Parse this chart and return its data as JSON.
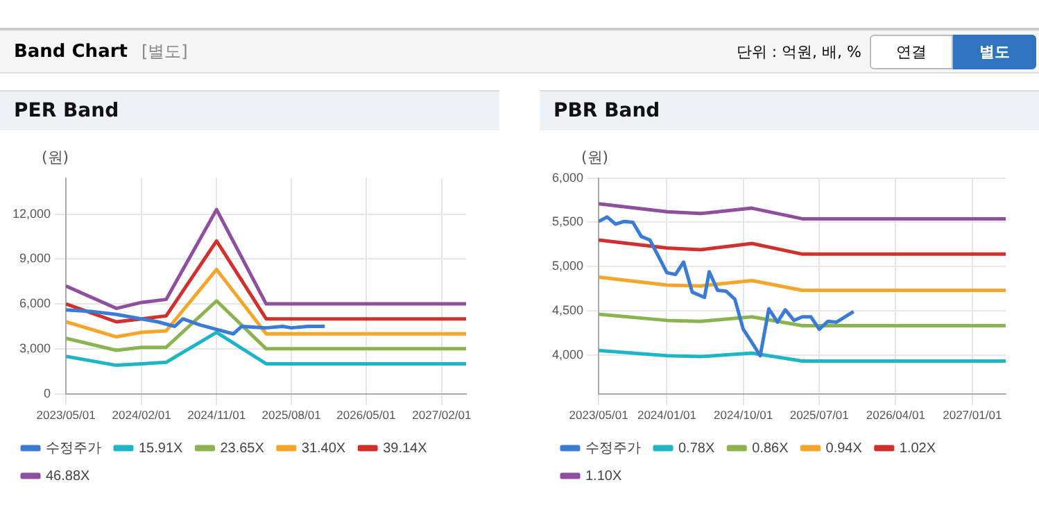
{
  "chart_data": [
    {
      "type": "other",
      "title": "Band Chart",
      "subtitle": "[별도]",
      "annotations": [
        "단위 : 억원, 배, %",
        "연결",
        "별도"
      ]
    },
    {
      "type": "line",
      "title": "PER Band",
      "ylabel": "(원)",
      "xlim": [
        "2023-05-01",
        "2027-05-01"
      ],
      "xticks": [
        {
          "value": "2023-05-01",
          "label": "2023/05/01"
        },
        {
          "value": "2024-02-01",
          "label": "2024/02/01"
        },
        {
          "value": "2024-11-01",
          "label": "2024/11/01"
        },
        {
          "value": "2025-08-01",
          "label": "2025/08/01"
        },
        {
          "value": "2026-05-01",
          "label": "2026/05/01"
        },
        {
          "value": "2027-02-01",
          "label": "2027/02/01"
        }
      ],
      "ylim": [
        0,
        14400
      ],
      "yticks": [
        0,
        {
          "value": 3000,
          "label": "3,000"
        },
        {
          "value": 6000,
          "label": "6,000"
        },
        {
          "value": 9000,
          "label": "9,000"
        },
        {
          "value": 12000,
          "label": "12,000"
        }
      ],
      "grid": true,
      "legend": "bottom",
      "marker": "none",
      "line_style": "solid",
      "series": [
        {
          "name": "수정주가",
          "color": "#3a7bd5",
          "x": [
            "2023-05-01",
            "2023-08-01",
            "2023-11-01",
            "2024-02-01",
            "2024-04-01",
            "2024-06-01",
            "2024-07-01",
            "2024-09-01",
            "2024-11-01",
            "2025-01-01",
            "2025-02-01",
            "2025-05-01",
            "2025-07-01",
            "2025-08-01",
            "2025-10-01",
            "2025-12-01"
          ],
          "values": [
            5600,
            5500,
            5300,
            5000,
            4800,
            4500,
            5000,
            4600,
            4300,
            4000,
            4500,
            4400,
            4500,
            4400,
            4500,
            4500
          ]
        },
        {
          "name": "15.91X",
          "color": "#1fb5c4",
          "x": [
            "2023-05-01",
            "2023-11-01",
            "2024-02-01",
            "2024-05-01",
            "2024-11-01",
            "2025-05-01",
            "2027-05-01"
          ],
          "values": [
            2500,
            1900,
            2000,
            2100,
            4100,
            2000,
            2000
          ]
        },
        {
          "name": "23.65X",
          "color": "#8bb450",
          "x": [
            "2023-05-01",
            "2023-11-01",
            "2024-02-01",
            "2024-05-01",
            "2024-11-01",
            "2025-05-01",
            "2027-05-01"
          ],
          "values": [
            3700,
            2900,
            3100,
            3100,
            6200,
            3000,
            3000
          ]
        },
        {
          "name": "31.40X",
          "color": "#f5a52a",
          "x": [
            "2023-05-01",
            "2023-11-01",
            "2024-02-01",
            "2024-05-01",
            "2024-11-01",
            "2025-05-01",
            "2027-05-01"
          ],
          "values": [
            4800,
            3800,
            4100,
            4200,
            8300,
            4000,
            4000
          ]
        },
        {
          "name": "39.14X",
          "color": "#d0312d",
          "x": [
            "2023-05-01",
            "2023-11-01",
            "2024-02-01",
            "2024-05-01",
            "2024-11-01",
            "2025-05-01",
            "2027-05-01"
          ],
          "values": [
            6000,
            4800,
            5000,
            5200,
            10200,
            5000,
            5000
          ]
        },
        {
          "name": "46.88X",
          "color": "#8e4f9e",
          "x": [
            "2023-05-01",
            "2023-11-01",
            "2024-02-01",
            "2024-05-01",
            "2024-11-01",
            "2025-05-01",
            "2027-05-01"
          ],
          "values": [
            7200,
            5700,
            6100,
            6300,
            12300,
            6000,
            6000
          ]
        }
      ]
    },
    {
      "type": "line",
      "title": "PBR Band",
      "ylabel": "(원)",
      "xlim": [
        "2023-05-01",
        "2027-05-01"
      ],
      "xticks": [
        {
          "value": "2023-05-01",
          "label": "2023/05/01"
        },
        {
          "value": "2024-01-01",
          "label": "2024/01/01"
        },
        {
          "value": "2024-10-01",
          "label": "2024/10/01"
        },
        {
          "value": "2025-07-01",
          "label": "2025/07/01"
        },
        {
          "value": "2026-04-01",
          "label": "2026/04/01"
        },
        {
          "value": "2027-01-01",
          "label": "2027/01/01"
        }
      ],
      "ylim": [
        3560,
        6000
      ],
      "yticks": [
        {
          "value": 4000,
          "label": "4,000"
        },
        {
          "value": 4500,
          "label": "4,500"
        },
        {
          "value": 5000,
          "label": "5,000"
        },
        {
          "value": 5500,
          "label": "5,500"
        },
        {
          "value": 6000,
          "label": "6,000"
        }
      ],
      "grid": true,
      "legend": "bottom",
      "marker": "none",
      "line_style": "solid",
      "series": [
        {
          "name": "수정주가",
          "color": "#3a7bd5",
          "x": [
            "2023-05-01",
            "2023-06-01",
            "2023-07-01",
            "2023-08-01",
            "2023-09-01",
            "2023-10-01",
            "2023-11-01",
            "2023-12-01",
            "2024-01-01",
            "2024-02-01",
            "2024-03-01",
            "2024-04-01",
            "2024-05-15",
            "2024-06-01",
            "2024-07-01",
            "2024-08-01",
            "2024-09-01",
            "2024-10-01",
            "2024-11-01",
            "2024-12-01",
            "2025-01-01",
            "2025-02-01",
            "2025-03-01",
            "2025-04-01",
            "2025-05-01",
            "2025-06-01",
            "2025-07-01",
            "2025-08-01",
            "2025-09-01",
            "2025-10-01",
            "2025-11-01"
          ],
          "values": [
            5510,
            5560,
            5480,
            5510,
            5500,
            5340,
            5300,
            5120,
            4930,
            4910,
            5050,
            4710,
            4650,
            4940,
            4730,
            4720,
            4630,
            4290,
            4140,
            3990,
            4520,
            4370,
            4510,
            4390,
            4430,
            4430,
            4290,
            4380,
            4370,
            4430,
            4490
          ]
        },
        {
          "name": "0.78X",
          "color": "#1fb5c4",
          "x": [
            "2023-05-01",
            "2024-01-01",
            "2024-05-01",
            "2024-11-01",
            "2025-05-01",
            "2027-05-01"
          ],
          "values": [
            4050,
            3990,
            3980,
            4020,
            3930,
            3930
          ]
        },
        {
          "name": "0.86X",
          "color": "#8bb450",
          "x": [
            "2023-05-01",
            "2024-01-01",
            "2024-05-01",
            "2024-11-01",
            "2025-05-01",
            "2027-05-01"
          ],
          "values": [
            4460,
            4390,
            4380,
            4430,
            4330,
            4330
          ]
        },
        {
          "name": "0.94X",
          "color": "#f5a52a",
          "x": [
            "2023-05-01",
            "2024-01-01",
            "2024-05-01",
            "2024-11-01",
            "2025-05-01",
            "2027-05-01"
          ],
          "values": [
            4880,
            4790,
            4780,
            4840,
            4730,
            4730
          ]
        },
        {
          "name": "1.02X",
          "color": "#d0312d",
          "x": [
            "2023-05-01",
            "2024-01-01",
            "2024-05-01",
            "2024-11-01",
            "2025-05-01",
            "2027-05-01"
          ],
          "values": [
            5300,
            5210,
            5190,
            5260,
            5140,
            5140
          ]
        },
        {
          "name": "1.10X",
          "color": "#8e4f9e",
          "x": [
            "2023-05-01",
            "2024-01-01",
            "2024-05-01",
            "2024-11-01",
            "2025-05-01",
            "2027-05-01"
          ],
          "values": [
            5710,
            5620,
            5600,
            5660,
            5540,
            5540
          ]
        }
      ]
    }
  ]
}
